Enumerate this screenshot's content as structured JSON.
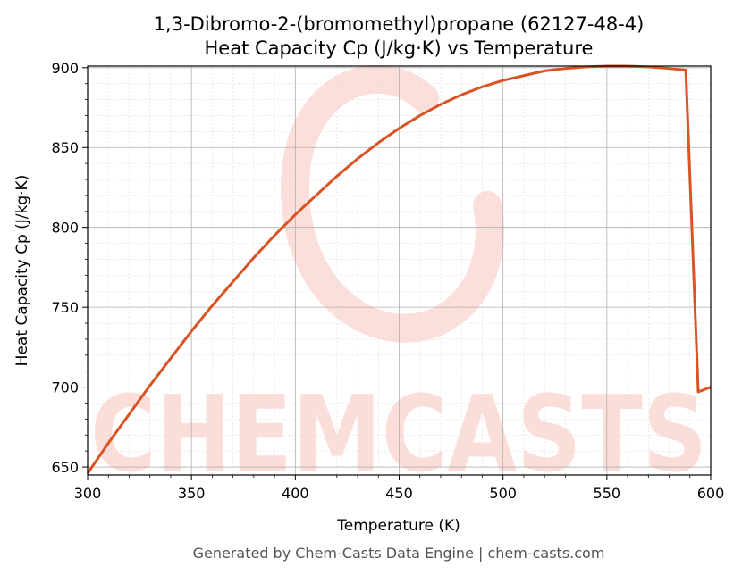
{
  "chart_data": {
    "type": "line",
    "title_line1": "1,3-Dibromo-2-(bromomethyl)propane (62127-48-4)",
    "title_line2": "Heat Capacity Cp (J/kg·K) vs Temperature",
    "xlabel": "Temperature (K)",
    "ylabel": "Heat Capacity Cp (J/kg·K)",
    "xlim": [
      300,
      600
    ],
    "ylim": [
      645,
      901
    ],
    "xticks": [
      300,
      350,
      400,
      450,
      500,
      550,
      600
    ],
    "yticks": [
      650,
      700,
      750,
      800,
      850,
      900
    ],
    "grid": true,
    "line_color": "#d95323",
    "series": [
      {
        "x": [
          300,
          310,
          320,
          330,
          340,
          350,
          360,
          370,
          380,
          390,
          400,
          410,
          420,
          430,
          440,
          450,
          460,
          470,
          480,
          490,
          500,
          510,
          520,
          530,
          540,
          550,
          560,
          570,
          580,
          588,
          594,
          600
        ],
        "values": [
          646,
          665,
          683,
          701,
          718,
          735,
          751,
          766,
          781,
          795,
          808,
          820,
          832,
          843,
          853,
          862,
          870,
          877,
          883,
          888,
          892,
          895,
          898,
          899.5,
          900.5,
          901,
          901,
          900.5,
          899.5,
          898.5,
          697,
          700
        ]
      }
    ]
  },
  "watermark": {
    "text": "CHEMCASTS",
    "color": "#fcd9d3"
  },
  "footer": "Generated by Chem-Casts Data Engine | chem-casts.com"
}
